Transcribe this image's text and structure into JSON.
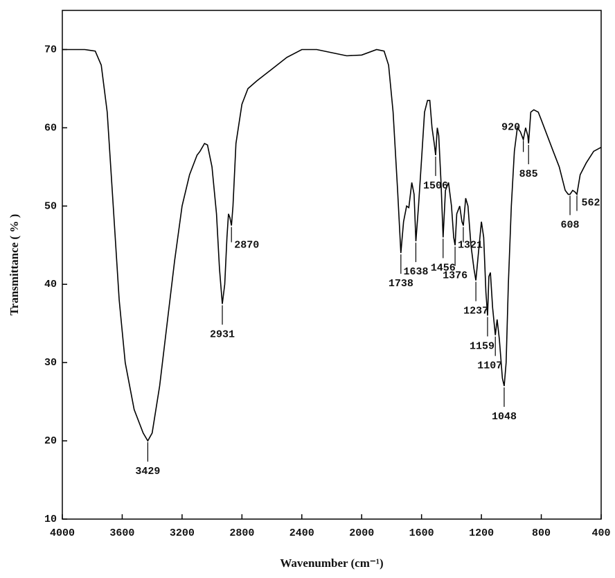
{
  "chart_data": {
    "type": "line",
    "x_label": "Wavenumber (cm⁻¹)",
    "y_label": "Transmittance ( % )",
    "color": "#000000",
    "x": [
      4000,
      3850,
      3780,
      3740,
      3700,
      3660,
      3620,
      3580,
      3520,
      3460,
      3429,
      3400,
      3350,
      3300,
      3250,
      3200,
      3150,
      3100,
      3080,
      3050,
      3030,
      3000,
      2970,
      2950,
      2931,
      2915,
      2900,
      2890,
      2880,
      2870,
      2860,
      2840,
      2800,
      2760,
      2700,
      2600,
      2500,
      2400,
      2300,
      2200,
      2100,
      2000,
      1900,
      1850,
      1820,
      1790,
      1760,
      1738,
      1720,
      1700,
      1685,
      1665,
      1650,
      1638,
      1620,
      1600,
      1580,
      1560,
      1545,
      1530,
      1515,
      1506,
      1495,
      1485,
      1470,
      1456,
      1440,
      1420,
      1400,
      1385,
      1376,
      1365,
      1345,
      1330,
      1321,
      1305,
      1290,
      1270,
      1250,
      1237,
      1220,
      1200,
      1185,
      1170,
      1159,
      1150,
      1140,
      1125,
      1107,
      1095,
      1080,
      1060,
      1048,
      1035,
      1020,
      1000,
      980,
      960,
      940,
      920,
      905,
      890,
      885,
      870,
      850,
      820,
      800,
      760,
      720,
      680,
      640,
      620,
      608,
      590,
      575,
      562,
      540,
      500,
      450,
      400
    ],
    "values": [
      70,
      70,
      69.8,
      68,
      62,
      50,
      38,
      30,
      24,
      21,
      20,
      21,
      27,
      35,
      43,
      50,
      54,
      56.5,
      57,
      58,
      57.8,
      55,
      49,
      42,
      37.5,
      40,
      46,
      49,
      48.5,
      47.5,
      50,
      58,
      63,
      65,
      66,
      67.5,
      69,
      70,
      70,
      69.6,
      69.2,
      69.3,
      70,
      69.8,
      68,
      62,
      52,
      44,
      48,
      50,
      49.8,
      53,
      51.5,
      45.5,
      50,
      56,
      62,
      63.5,
      63.5,
      60,
      58,
      56.5,
      60,
      59,
      53,
      46,
      52,
      53,
      50,
      46,
      45,
      49,
      50,
      48,
      47.5,
      51,
      50,
      45,
      42,
      40.5,
      44,
      48,
      46,
      39,
      36,
      41,
      41.5,
      37,
      33.5,
      35.5,
      33,
      28,
      27,
      30,
      40,
      50,
      57,
      60,
      59.5,
      58.5,
      60,
      59,
      58,
      62,
      62.3,
      62,
      61,
      59,
      57,
      55,
      52,
      51.5,
      51.5,
      52,
      51.8,
      51.5,
      54,
      55.5,
      57,
      57.5
    ],
    "peaks": [
      3429,
      2931,
      2870,
      1738,
      1638,
      1506,
      1456,
      1376,
      1321,
      1237,
      1159,
      1107,
      1048,
      920,
      885,
      608,
      562
    ],
    "xlim": [
      4000,
      400
    ],
    "xticks": [
      4000,
      3600,
      3200,
      2800,
      2400,
      2000,
      1600,
      1200,
      800,
      400
    ],
    "ylim": [
      10,
      75
    ],
    "yticks": [
      10,
      20,
      30,
      40,
      50,
      60,
      70
    ]
  }
}
